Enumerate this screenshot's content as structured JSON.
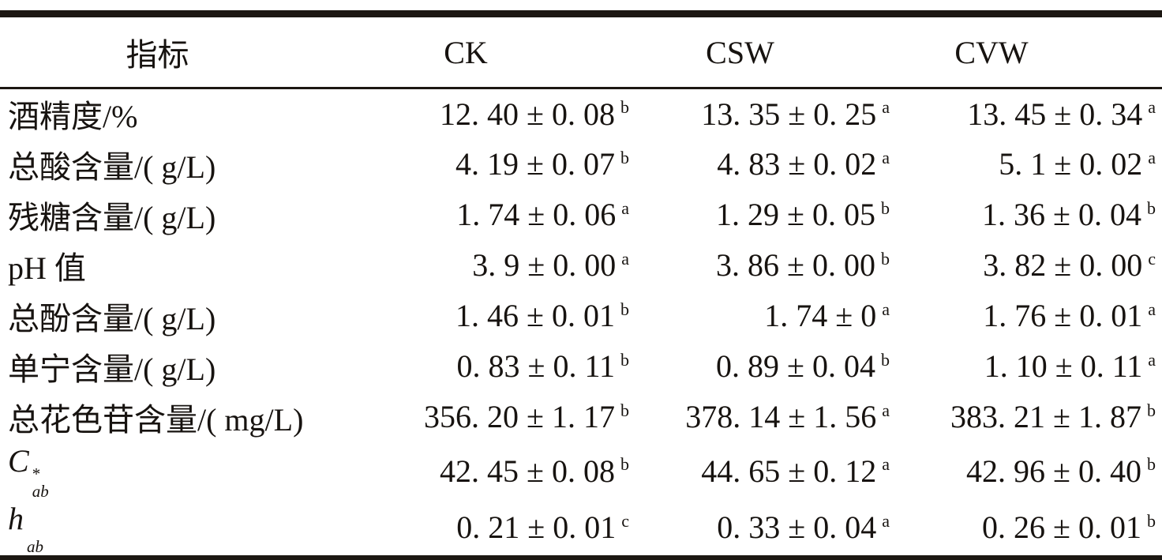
{
  "table": {
    "columns": [
      "指标",
      "CK",
      "CSW",
      "CVW"
    ],
    "rows": [
      {
        "label": {
          "text": "酒精度/%"
        },
        "cells": [
          {
            "v": "12. 40 ± 0. 08",
            "s": "b"
          },
          {
            "v": "13. 35 ± 0. 25",
            "s": "a"
          },
          {
            "v": "13. 45 ± 0. 34",
            "s": "a"
          }
        ]
      },
      {
        "label": {
          "text": "总酸含量/( g/L)"
        },
        "cells": [
          {
            "v": "4. 19 ± 0. 07",
            "s": "b"
          },
          {
            "v": "4. 83 ± 0. 02",
            "s": "a"
          },
          {
            "v": "5. 1 ± 0. 02",
            "s": "a"
          }
        ]
      },
      {
        "label": {
          "text": "残糖含量/( g/L)"
        },
        "cells": [
          {
            "v": "1. 74 ± 0. 06",
            "s": "a"
          },
          {
            "v": "1. 29 ± 0. 05",
            "s": "b"
          },
          {
            "v": "1. 36 ± 0. 04",
            "s": "b"
          }
        ]
      },
      {
        "label": {
          "text": "pH 值"
        },
        "cells": [
          {
            "v": "3. 9 ± 0. 00",
            "s": "a"
          },
          {
            "v": "3. 86 ± 0. 00",
            "s": "b"
          },
          {
            "v": "3. 82 ± 0. 00",
            "s": "c"
          }
        ]
      },
      {
        "label": {
          "text": "总酚含量/( g/L)"
        },
        "cells": [
          {
            "v": "1. 46 ± 0. 01",
            "s": "b"
          },
          {
            "v": "1. 74 ± 0",
            "s": "a"
          },
          {
            "v": "1. 76 ± 0. 01",
            "s": "a"
          }
        ]
      },
      {
        "label": {
          "text": "单宁含量/( g/L)"
        },
        "cells": [
          {
            "v": "0. 83 ± 0. 11",
            "s": "b"
          },
          {
            "v": "0. 89 ± 0. 04",
            "s": "b"
          },
          {
            "v": "1. 10 ± 0. 11",
            "s": "a"
          }
        ]
      },
      {
        "label": {
          "text": "总花色苷含量/( mg/L)"
        },
        "cells": [
          {
            "v": "356. 20 ± 1. 17",
            "s": "b"
          },
          {
            "v": "378. 14 ± 1. 56",
            "s": "a"
          },
          {
            "v": "383. 21 ± 1. 87",
            "s": "b"
          }
        ]
      },
      {
        "label": {
          "text": "C",
          "sup": "*",
          "sub": "ab",
          "italic": true
        },
        "cells": [
          {
            "v": "42. 45 ± 0. 08",
            "s": "b"
          },
          {
            "v": "44. 65 ± 0. 12",
            "s": "a"
          },
          {
            "v": "42. 96 ± 0. 40",
            "s": "b"
          }
        ]
      },
      {
        "label": {
          "text": "h",
          "sub": "ab",
          "italic": true
        },
        "cells": [
          {
            "v": "0. 21 ± 0. 01",
            "s": "c"
          },
          {
            "v": "0. 33 ± 0. 04",
            "s": "a"
          },
          {
            "v": "0. 26 ± 0. 01",
            "s": "b"
          }
        ]
      }
    ],
    "colors": {
      "rule": "#1c1712",
      "text": "#171310",
      "background": "#ffffff"
    }
  }
}
